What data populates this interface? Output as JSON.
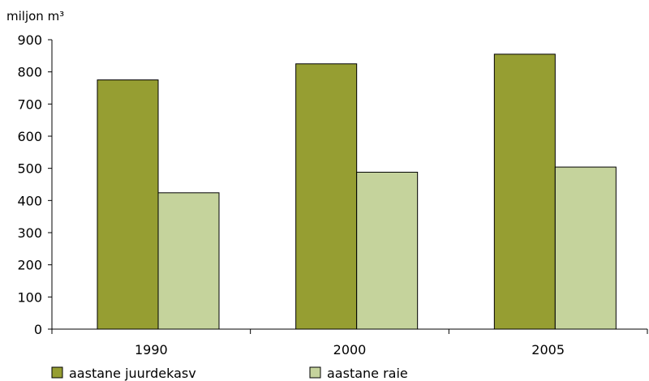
{
  "chart_data": {
    "type": "bar",
    "title": "",
    "ylabel": "miljon m³",
    "xlabel": "",
    "categories": [
      "1990",
      "2000",
      "2005"
    ],
    "series": [
      {
        "name": "aastane juurdekasv",
        "values": [
          775,
          825,
          855
        ],
        "color": "#969e32"
      },
      {
        "name": "aastane raie",
        "values": [
          424,
          488,
          504
        ],
        "color": "#c5d39c"
      }
    ],
    "ylim": [
      0,
      900
    ],
    "yticks": [
      0,
      100,
      200,
      300,
      400,
      500,
      600,
      700,
      800,
      900
    ],
    "grid": false,
    "legend_position": "bottom"
  }
}
